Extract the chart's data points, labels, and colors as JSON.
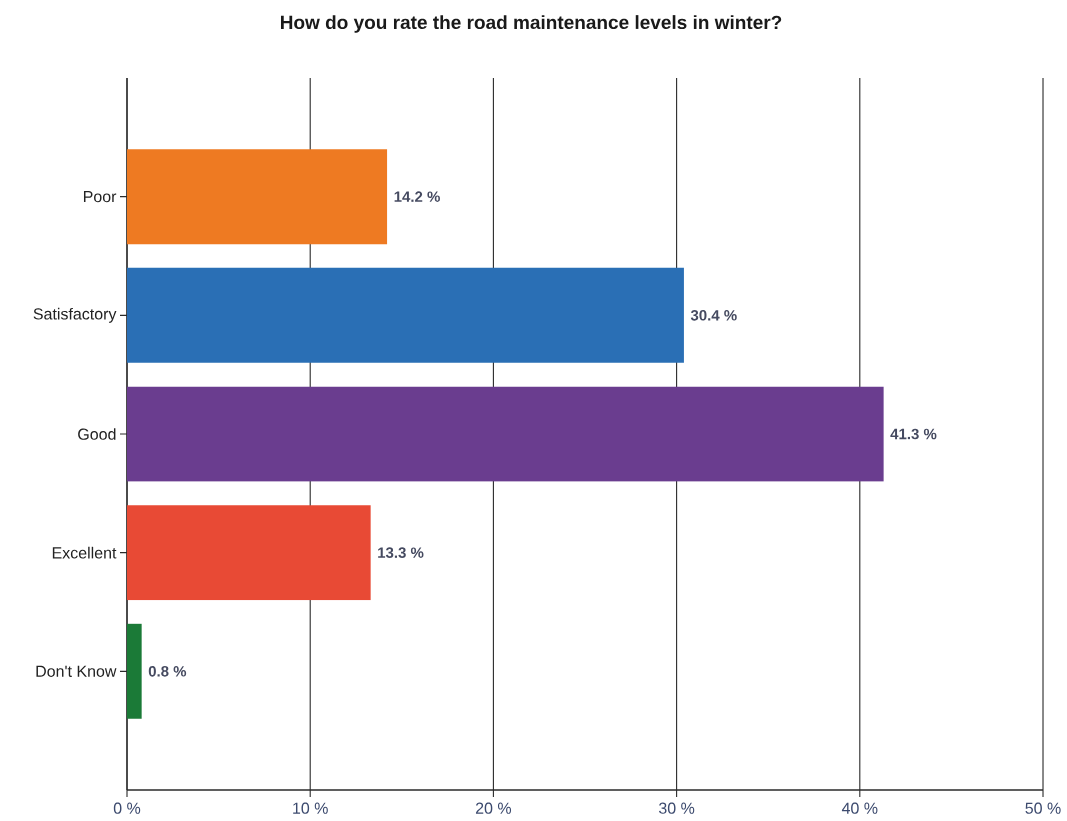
{
  "chart_data": {
    "type": "bar",
    "orientation": "horizontal",
    "title": "How do you rate the road maintenance levels in winter?",
    "categories": [
      "Poor",
      "Satisfactory",
      "Good",
      "Excellent",
      "Don't Know"
    ],
    "values": [
      14.2,
      30.4,
      41.3,
      13.3,
      0.8
    ],
    "colors": [
      "#ee7a22",
      "#2a6fb5",
      "#6a3d8f",
      "#e84a35",
      "#1b7a37"
    ],
    "value_labels": [
      "14.2 %",
      "30.4 %",
      "41.3 %",
      "13.3 %",
      "0.8 %"
    ],
    "xlim": [
      0,
      50
    ],
    "xticks": [
      {
        "value": 0,
        "label": "0 %"
      },
      {
        "value": 10,
        "label": "10 %"
      },
      {
        "value": 20,
        "label": "20 %"
      },
      {
        "value": 30,
        "label": "30 %"
      },
      {
        "value": 40,
        "label": "40 %"
      },
      {
        "value": 50,
        "label": "50 %"
      }
    ],
    "grid": "x"
  }
}
